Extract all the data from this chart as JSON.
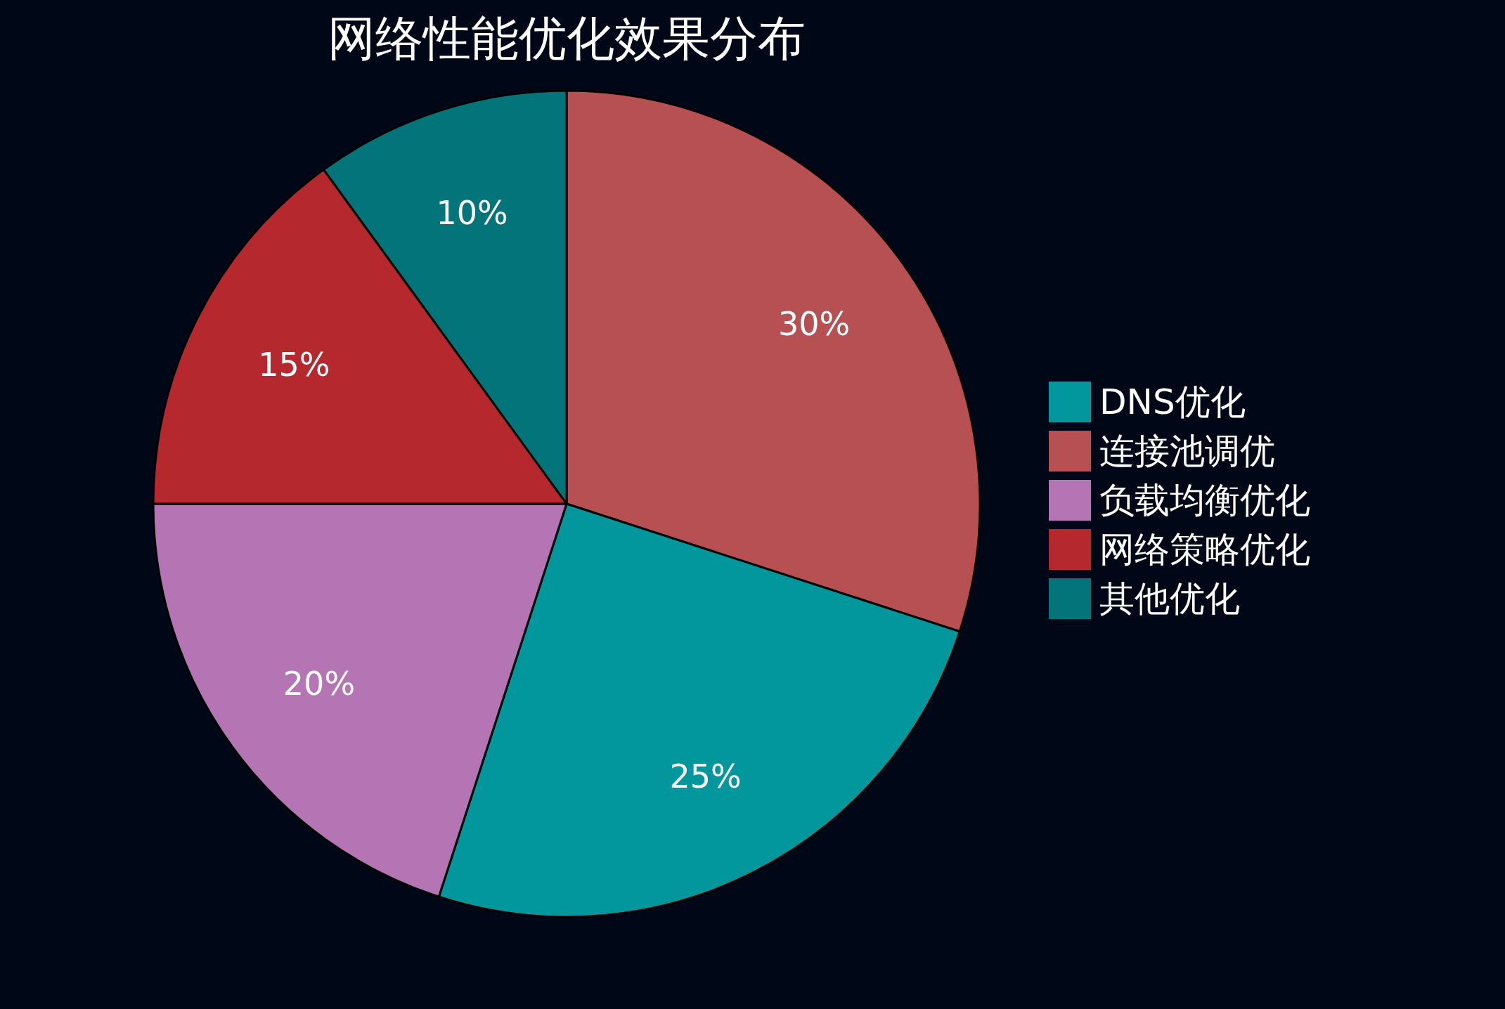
{
  "chart_data": {
    "type": "pie",
    "title": "网络性能优化效果分布",
    "categories": [
      "DNS优化",
      "连接池调优",
      "负载均衡优化",
      "网络策略优化",
      "其他优化"
    ],
    "values": [
      25,
      30,
      20,
      15,
      10
    ],
    "value_labels": [
      "25%",
      "30%",
      "20%",
      "15%",
      "10%"
    ],
    "colors": [
      "#02979c",
      "#b75052",
      "#b574b4",
      "#b4282e",
      "#03757a"
    ],
    "legend": "right"
  }
}
